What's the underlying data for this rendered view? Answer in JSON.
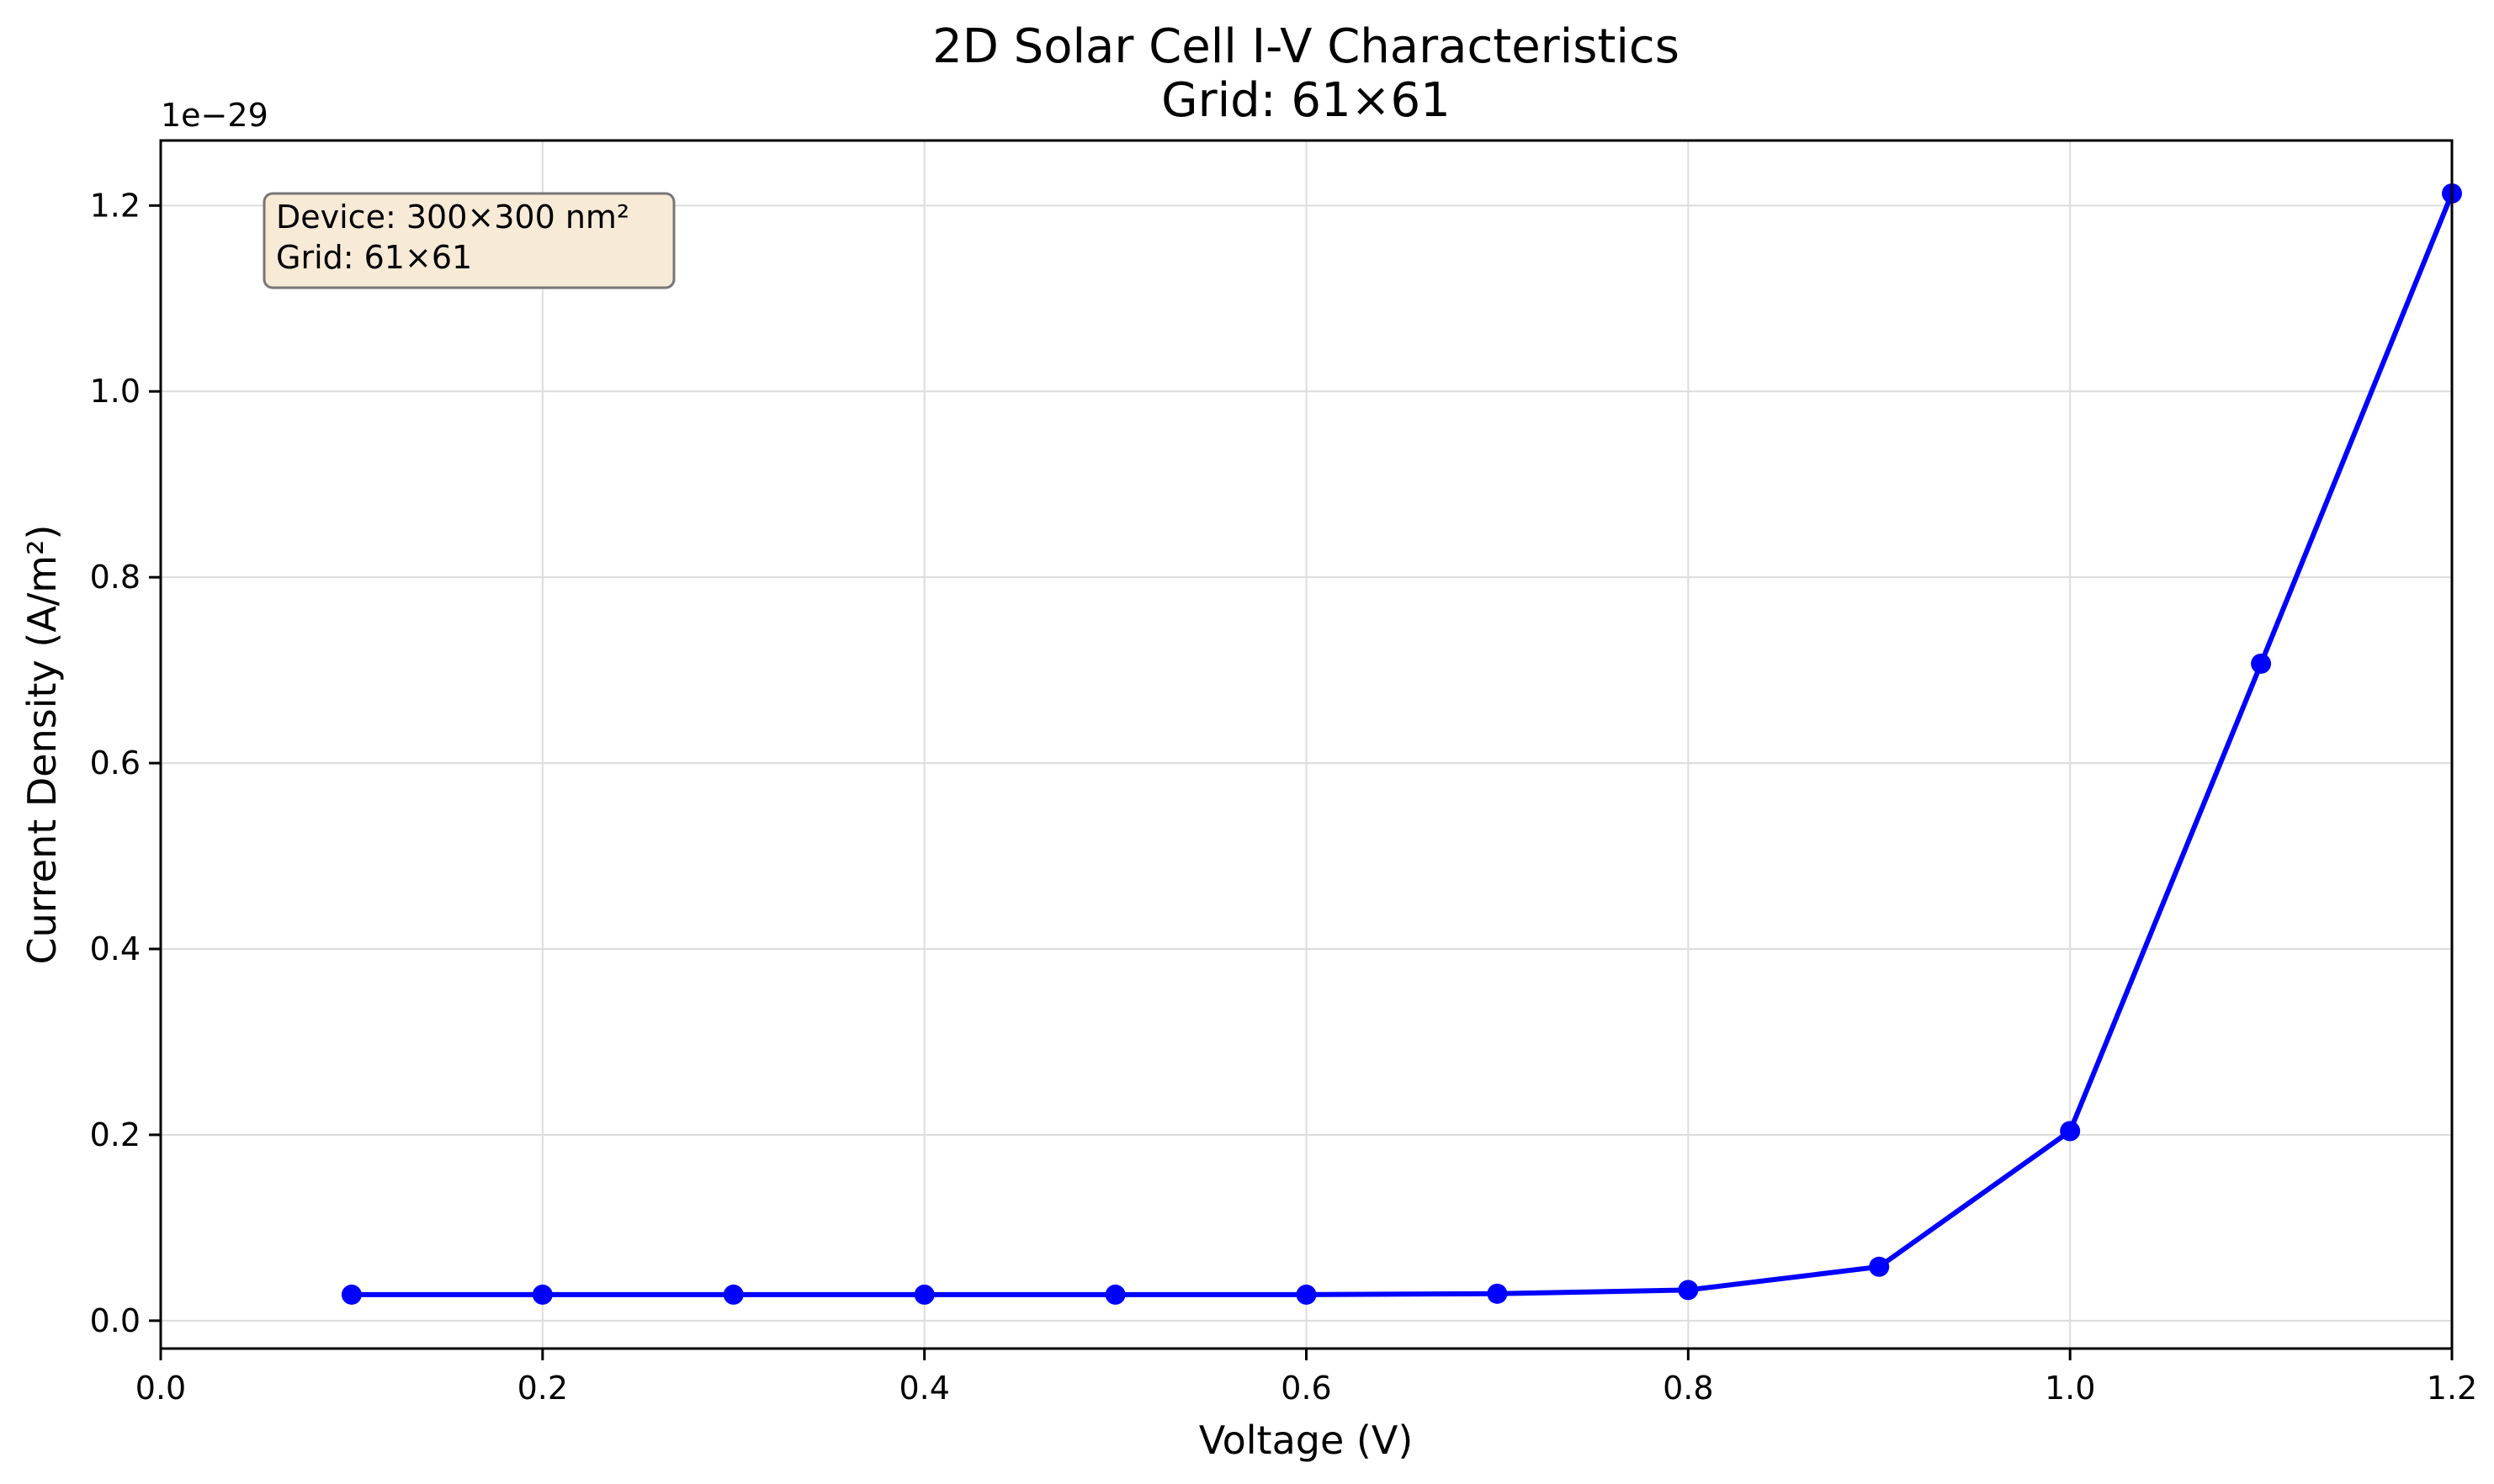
{
  "chart_data": {
    "type": "line",
    "title": "2D Solar Cell I-V Characteristics",
    "subtitle": "Grid: 61×61",
    "xlabel": "Voltage (V)",
    "ylabel": "Current Density (A/m²)",
    "y_scale_label": "1e−29",
    "xlim": [
      0.0,
      1.2
    ],
    "ylim": [
      -0.03,
      1.27
    ],
    "xticks": [
      0.0,
      0.2,
      0.4,
      0.6,
      0.8,
      1.0,
      1.2
    ],
    "xtick_labels": [
      "0.0",
      "0.2",
      "0.4",
      "0.6",
      "0.8",
      "1.0",
      "1.2"
    ],
    "yticks": [
      0.0,
      0.2,
      0.4,
      0.6,
      0.8,
      1.0,
      1.2
    ],
    "ytick_labels": [
      "0.0",
      "0.2",
      "0.4",
      "0.6",
      "0.8",
      "1.0",
      "1.2"
    ],
    "grid": true,
    "series": [
      {
        "color": "#0000ff",
        "marker": "circle",
        "x": [
          0.1,
          0.2,
          0.3,
          0.4,
          0.5,
          0.6,
          0.7,
          0.8,
          0.9,
          1.0,
          1.1,
          1.2
        ],
        "y": [
          0.028,
          0.028,
          0.028,
          0.028,
          0.028,
          0.028,
          0.029,
          0.033,
          0.058,
          0.204,
          0.707,
          1.213
        ]
      }
    ],
    "annotation": {
      "line1": "Device: 300×300 nm²",
      "line2": "Grid: 61×61",
      "placement": "top-left",
      "facecolor": "#f7ead6",
      "edgecolor": "#777777"
    }
  }
}
